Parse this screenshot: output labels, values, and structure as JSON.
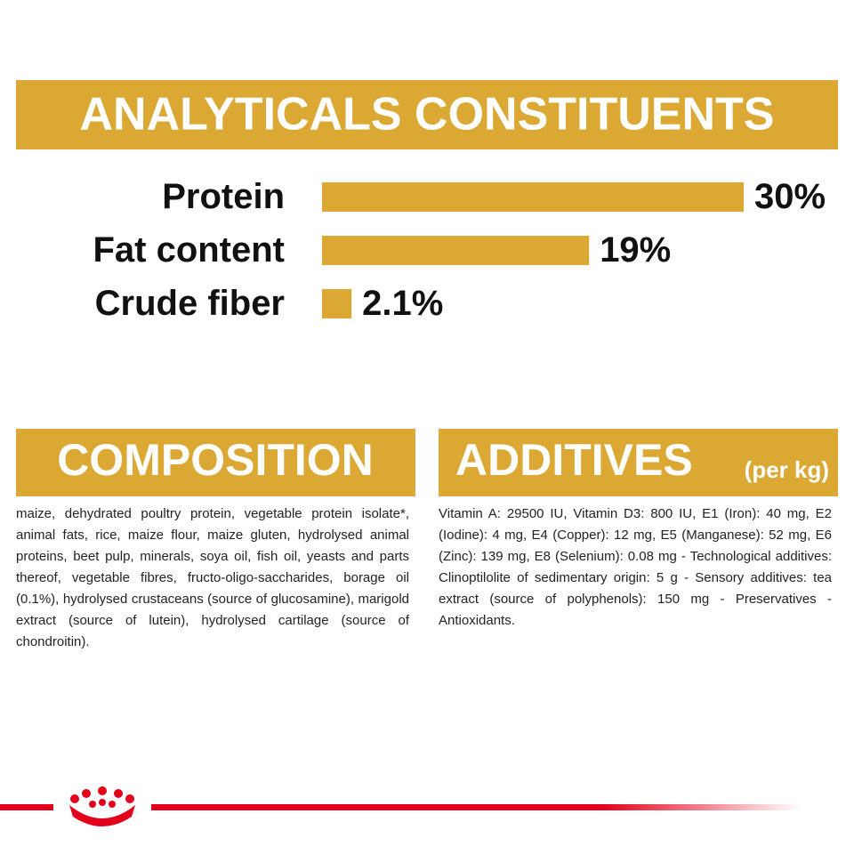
{
  "chart_data": {
    "type": "bar",
    "orientation": "horizontal",
    "title": "ANALYTICALS CONSTITUENTS",
    "categories": [
      "Protein",
      "Fat content",
      "Crude fiber"
    ],
    "values": [
      30,
      19,
      2.1
    ],
    "value_labels": [
      "30%",
      "19%",
      "2.1%"
    ],
    "color": "#dba833"
  },
  "composition": {
    "title": "COMPOSITION",
    "text": "maize, dehydrated poultry protein, vegetable protein isolate*, animal fats, rice, maize flour, maize gluten, hydrolysed animal proteins, beet pulp, minerals, soya oil, fish oil, yeasts and parts thereof, vegetable fibres, fructo-oligo-saccharides, borage oil (0.1%), hydrolysed crustaceans (source of glucosamine), marigold extract (source of lutein), hydrolysed cartilage (source of chondroitin)."
  },
  "additives": {
    "title": "ADDITIVES",
    "subtitle": "(per kg)",
    "text": "Vitamin A: 29500 IU, Vitamin D3: 800 IU, E1 (Iron): 40 mg, E2 (Iodine): 4 mg, E4 (Copper): 12 mg, E5 (Manganese): 52 mg, E6 (Zinc): 139 mg, E8 (Selenium): 0.08 mg - Technological additives: Clinoptilolite of sedimentary origin: 5 g - Sensory additives: tea extract (source of polyphenols): 150 mg - Preservatives - Antioxidants."
  }
}
